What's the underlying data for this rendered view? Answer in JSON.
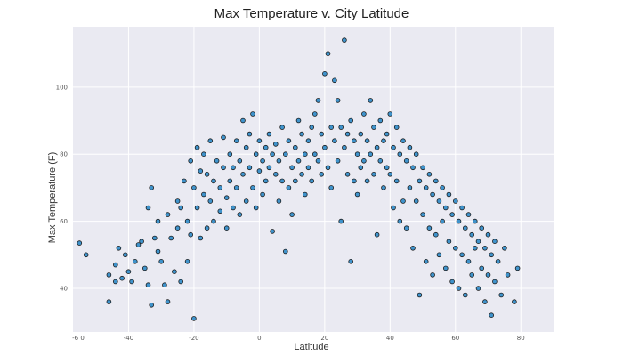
{
  "chart_data": {
    "type": "scatter",
    "title": "Max Temperature v. City Latitude",
    "xlabel": "Latitude",
    "ylabel": "Max Temperature (F)",
    "xlim": [
      -57,
      90
    ],
    "ylim": [
      27,
      118
    ],
    "xticks": [
      -60,
      -40,
      -20,
      0,
      20,
      40,
      60,
      80
    ],
    "xtick_labels": [
      "-6 0",
      "-40",
      "-20",
      "0",
      "20",
      "40",
      "60",
      "80"
    ],
    "yticks": [
      40,
      60,
      80,
      100
    ],
    "ytick_labels": [
      "40",
      "60",
      "80",
      "100"
    ],
    "grid": true,
    "background": "#eaeaf2",
    "marker_color": "#3f93cc",
    "marker_edge": "#1a1a1a",
    "series": [
      {
        "points": [
          [
            -55,
            53.5
          ],
          [
            -53,
            50
          ],
          [
            -46,
            44
          ],
          [
            -46,
            36
          ],
          [
            -44,
            47
          ],
          [
            -44,
            42
          ],
          [
            -43,
            52
          ],
          [
            -42,
            43
          ],
          [
            -41,
            50
          ],
          [
            -40,
            45
          ],
          [
            -39,
            42
          ],
          [
            -38,
            48
          ],
          [
            -37,
            53
          ],
          [
            -36,
            54
          ],
          [
            -35,
            46
          ],
          [
            -34,
            64
          ],
          [
            -34,
            41
          ],
          [
            -33,
            70
          ],
          [
            -33,
            35
          ],
          [
            -32,
            55
          ],
          [
            -31,
            60
          ],
          [
            -31,
            51
          ],
          [
            -30,
            48
          ],
          [
            -29,
            41
          ],
          [
            -28,
            62
          ],
          [
            -28,
            36
          ],
          [
            -27,
            55
          ],
          [
            -26,
            45
          ],
          [
            -25,
            66
          ],
          [
            -25,
            58
          ],
          [
            -24,
            64
          ],
          [
            -24,
            42
          ],
          [
            -23,
            72
          ],
          [
            -22,
            60
          ],
          [
            -22,
            48
          ],
          [
            -21,
            78
          ],
          [
            -21,
            56
          ],
          [
            -20,
            70
          ],
          [
            -20,
            31
          ],
          [
            -19,
            82
          ],
          [
            -19,
            64
          ],
          [
            -18,
            75
          ],
          [
            -18,
            55
          ],
          [
            -17,
            80
          ],
          [
            -17,
            68
          ],
          [
            -16,
            74
          ],
          [
            -16,
            58
          ],
          [
            -15,
            84
          ],
          [
            -15,
            66
          ],
          [
            -14,
            72
          ],
          [
            -14,
            60
          ],
          [
            -13,
            78
          ],
          [
            -12,
            70
          ],
          [
            -12,
            63
          ],
          [
            -11,
            85
          ],
          [
            -11,
            76
          ],
          [
            -10,
            67
          ],
          [
            -10,
            58
          ],
          [
            -9,
            80
          ],
          [
            -9,
            72
          ],
          [
            -8,
            64
          ],
          [
            -8,
            76
          ],
          [
            -7,
            84
          ],
          [
            -7,
            70
          ],
          [
            -6,
            78
          ],
          [
            -6,
            62
          ],
          [
            -5,
            90
          ],
          [
            -5,
            74
          ],
          [
            -4,
            82
          ],
          [
            -4,
            66
          ],
          [
            -3,
            86
          ],
          [
            -3,
            76
          ],
          [
            -2,
            92
          ],
          [
            -2,
            70
          ],
          [
            -1,
            80
          ],
          [
            -1,
            64
          ],
          [
            0,
            84
          ],
          [
            0,
            75
          ],
          [
            1,
            78
          ],
          [
            1,
            68
          ],
          [
            2,
            82
          ],
          [
            2,
            72
          ],
          [
            3,
            76
          ],
          [
            3,
            86
          ],
          [
            4,
            80
          ],
          [
            4,
            57
          ],
          [
            5,
            83
          ],
          [
            5,
            74
          ],
          [
            6,
            78
          ],
          [
            6,
            66
          ],
          [
            7,
            72
          ],
          [
            7,
            88
          ],
          [
            8,
            80
          ],
          [
            8,
            51
          ],
          [
            9,
            84
          ],
          [
            9,
            70
          ],
          [
            10,
            76
          ],
          [
            10,
            62
          ],
          [
            11,
            82
          ],
          [
            11,
            72
          ],
          [
            12,
            90
          ],
          [
            12,
            78
          ],
          [
            13,
            74
          ],
          [
            13,
            86
          ],
          [
            14,
            80
          ],
          [
            14,
            68
          ],
          [
            15,
            84
          ],
          [
            15,
            76
          ],
          [
            16,
            88
          ],
          [
            16,
            72
          ],
          [
            17,
            92
          ],
          [
            17,
            80
          ],
          [
            18,
            96
          ],
          [
            18,
            78
          ],
          [
            19,
            86
          ],
          [
            19,
            74
          ],
          [
            20,
            104
          ],
          [
            20,
            82
          ],
          [
            21,
            110
          ],
          [
            21,
            76
          ],
          [
            22,
            88
          ],
          [
            22,
            70
          ],
          [
            23,
            102
          ],
          [
            23,
            84
          ],
          [
            24,
            96
          ],
          [
            24,
            78
          ],
          [
            25,
            88
          ],
          [
            25,
            60
          ],
          [
            26,
            114
          ],
          [
            26,
            82
          ],
          [
            27,
            86
          ],
          [
            27,
            74
          ],
          [
            28,
            90
          ],
          [
            28,
            48
          ],
          [
            29,
            84
          ],
          [
            29,
            72
          ],
          [
            30,
            80
          ],
          [
            30,
            68
          ],
          [
            31,
            86
          ],
          [
            31,
            76
          ],
          [
            32,
            92
          ],
          [
            32,
            78
          ],
          [
            33,
            84
          ],
          [
            33,
            72
          ],
          [
            34,
            96
          ],
          [
            34,
            80
          ],
          [
            35,
            88
          ],
          [
            35,
            74
          ],
          [
            36,
            82
          ],
          [
            36,
            56
          ],
          [
            37,
            90
          ],
          [
            37,
            78
          ],
          [
            38,
            84
          ],
          [
            38,
            70
          ],
          [
            39,
            86
          ],
          [
            39,
            76
          ],
          [
            40,
            92
          ],
          [
            40,
            74
          ],
          [
            41,
            82
          ],
          [
            41,
            64
          ],
          [
            42,
            88
          ],
          [
            42,
            72
          ],
          [
            43,
            80
          ],
          [
            43,
            60
          ],
          [
            44,
            84
          ],
          [
            44,
            66
          ],
          [
            45,
            78
          ],
          [
            45,
            58
          ],
          [
            46,
            82
          ],
          [
            46,
            70
          ],
          [
            47,
            76
          ],
          [
            47,
            52
          ],
          [
            48,
            80
          ],
          [
            48,
            66
          ],
          [
            49,
            72
          ],
          [
            49,
            38
          ],
          [
            50,
            76
          ],
          [
            50,
            62
          ],
          [
            51,
            70
          ],
          [
            51,
            48
          ],
          [
            52,
            74
          ],
          [
            52,
            58
          ],
          [
            53,
            68
          ],
          [
            53,
            44
          ],
          [
            54,
            72
          ],
          [
            54,
            56
          ],
          [
            55,
            66
          ],
          [
            55,
            50
          ],
          [
            56,
            70
          ],
          [
            56,
            60
          ],
          [
            57,
            64
          ],
          [
            57,
            46
          ],
          [
            58,
            68
          ],
          [
            58,
            54
          ],
          [
            59,
            62
          ],
          [
            59,
            42
          ],
          [
            60,
            66
          ],
          [
            60,
            52
          ],
          [
            61,
            60
          ],
          [
            61,
            40
          ],
          [
            62,
            64
          ],
          [
            62,
            50
          ],
          [
            63,
            58
          ],
          [
            63,
            38
          ],
          [
            64,
            62
          ],
          [
            64,
            48
          ],
          [
            65,
            56
          ],
          [
            65,
            44
          ],
          [
            66,
            60
          ],
          [
            66,
            52
          ],
          [
            67,
            54
          ],
          [
            67,
            40
          ],
          [
            68,
            58
          ],
          [
            68,
            46
          ],
          [
            69,
            52
          ],
          [
            69,
            36
          ],
          [
            70,
            56
          ],
          [
            70,
            44
          ],
          [
            71,
            50
          ],
          [
            71,
            32
          ],
          [
            72,
            54
          ],
          [
            72,
            42
          ],
          [
            73,
            48
          ],
          [
            74,
            38
          ],
          [
            75,
            52
          ],
          [
            76,
            44
          ],
          [
            78,
            36
          ],
          [
            79,
            46
          ]
        ]
      }
    ]
  }
}
